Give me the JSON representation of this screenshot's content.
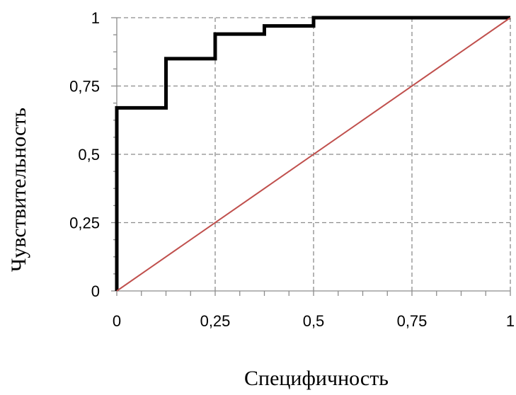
{
  "chart_data": {
    "type": "line",
    "title": "",
    "xlabel": "Специфичность",
    "ylabel": "Чувствительность",
    "xlim": [
      0,
      1
    ],
    "ylim": [
      0,
      1
    ],
    "x_ticks": [
      "0",
      "0,25",
      "0,5",
      "0,75",
      "1"
    ],
    "y_ticks": [
      "0",
      "0,25",
      "0,5",
      "0,75",
      "1"
    ],
    "x_tick_values": [
      0,
      0.25,
      0.5,
      0.75,
      1
    ],
    "y_tick_values": [
      0,
      0.25,
      0.5,
      0.75,
      1
    ],
    "x_minor_step": 0.0625,
    "grid": true,
    "grid_style": "dashed",
    "legend": "none",
    "series": [
      {
        "style": "step",
        "color": "#000000",
        "points": [
          [
            0,
            0
          ],
          [
            0,
            0.67
          ],
          [
            0.125,
            0.67
          ],
          [
            0.125,
            0.85
          ],
          [
            0.25,
            0.85
          ],
          [
            0.25,
            0.94
          ],
          [
            0.375,
            0.94
          ],
          [
            0.375,
            0.97
          ],
          [
            0.5,
            0.97
          ],
          [
            0.5,
            1
          ],
          [
            1,
            1
          ]
        ]
      },
      {
        "style": "line",
        "color": "#c0504d",
        "points": [
          [
            0,
            0
          ],
          [
            1,
            1
          ]
        ]
      }
    ]
  }
}
